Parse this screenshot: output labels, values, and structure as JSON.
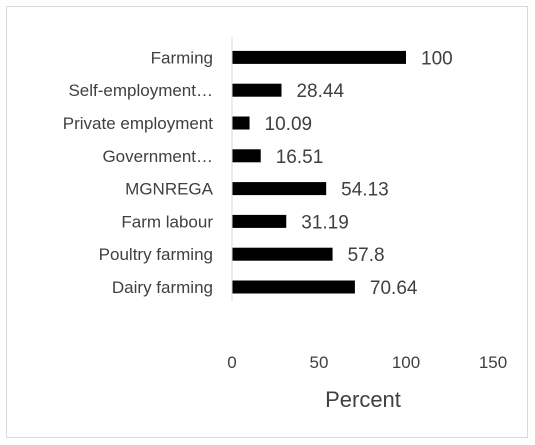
{
  "chart_data": {
    "type": "bar",
    "orientation": "horizontal",
    "categories": [
      "Farming",
      "Self-employment…",
      "Private employment",
      "Government…",
      "MGNREGA",
      "Farm labour",
      "Poultry farming",
      "Dairy farming"
    ],
    "values": [
      100,
      28.44,
      10.09,
      16.51,
      54.13,
      31.19,
      57.8,
      70.64
    ],
    "data_labels": [
      "100",
      "28.44",
      "10.09",
      "16.51",
      "54.13",
      "31.19",
      "57.8",
      "70.64"
    ],
    "xlabel": "Percent",
    "ylabel": "",
    "xlim": [
      0,
      150
    ],
    "xticks": [
      "0",
      "50",
      "100",
      "150"
    ],
    "grid": false,
    "legend": "none",
    "bar_color": "#000000"
  }
}
